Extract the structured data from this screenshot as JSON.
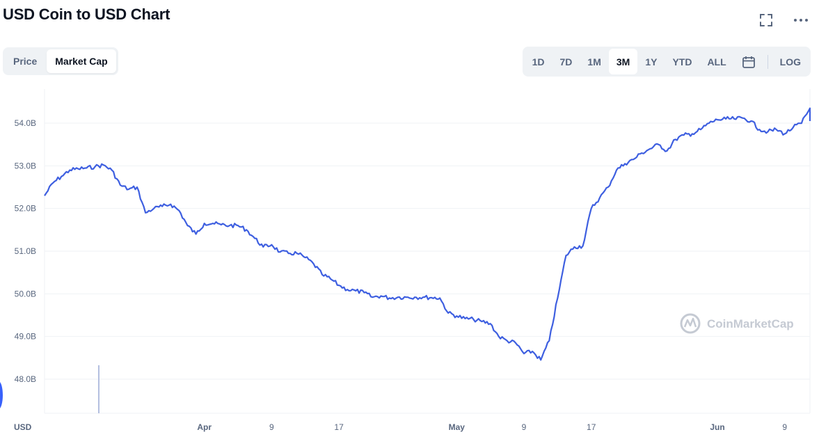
{
  "title": "USD Coin to USD Chart",
  "icons": {
    "fullscreen": "fullscreen-icon",
    "more": "more-icon",
    "calendar": "calendar-icon"
  },
  "view_tabs": [
    {
      "label": "Price",
      "active": false
    },
    {
      "label": "Market Cap",
      "active": true
    }
  ],
  "range_tabs": [
    {
      "label": "1D",
      "active": false
    },
    {
      "label": "7D",
      "active": false
    },
    {
      "label": "1M",
      "active": false
    },
    {
      "label": "3M",
      "active": true
    },
    {
      "label": "1Y",
      "active": false
    },
    {
      "label": "YTD",
      "active": false
    },
    {
      "label": "ALL",
      "active": false
    }
  ],
  "log_label": "LOG",
  "currency_label": "USD",
  "watermark": "CoinMarketCap",
  "colors": {
    "line": "#3e5fe0",
    "grid": "#eff2f5",
    "axis_text": "#58667e",
    "accent": "#3861fb",
    "volume_bar": "#b4bfe0"
  },
  "chart_data": {
    "type": "line",
    "title": "",
    "xlabel": "",
    "ylabel": "",
    "ylim": [
      47.2,
      54.8
    ],
    "xlim": [
      "2022-03-13",
      "2022-06-12"
    ],
    "y_ticks": [
      "48.0B",
      "49.0B",
      "50.0B",
      "51.0B",
      "52.0B",
      "53.0B",
      "54.0B"
    ],
    "x_ticks": [
      "Apr",
      "9",
      "17",
      "May",
      "9",
      "17",
      "Jun",
      "9"
    ],
    "x_tick_dates": [
      "2022-04-01",
      "2022-04-09",
      "2022-04-17",
      "2022-05-01",
      "2022-05-09",
      "2022-05-17",
      "2022-06-01",
      "2022-06-09"
    ],
    "grid": true,
    "legend": "none",
    "series": [
      {
        "unit": "USD billions",
        "points": [
          [
            "2022-03-13",
            52.3
          ],
          [
            "2022-03-14",
            52.6
          ],
          [
            "2022-03-15",
            52.75
          ],
          [
            "2022-03-16",
            52.9
          ],
          [
            "2022-03-17",
            52.93
          ],
          [
            "2022-03-18",
            52.95
          ],
          [
            "2022-03-19",
            52.98
          ],
          [
            "2022-03-20",
            53.02
          ],
          [
            "2022-03-21",
            52.9
          ],
          [
            "2022-03-22",
            52.55
          ],
          [
            "2022-03-23",
            52.45
          ],
          [
            "2022-03-24",
            52.5
          ],
          [
            "2022-03-25",
            51.9
          ],
          [
            "2022-03-26",
            52.0
          ],
          [
            "2022-03-27",
            52.05
          ],
          [
            "2022-03-28",
            52.1
          ],
          [
            "2022-03-29",
            51.95
          ],
          [
            "2022-03-30",
            51.6
          ],
          [
            "2022-03-31",
            51.4
          ],
          [
            "2022-04-01",
            51.65
          ],
          [
            "2022-04-02",
            51.65
          ],
          [
            "2022-04-03",
            51.62
          ],
          [
            "2022-04-04",
            51.6
          ],
          [
            "2022-04-05",
            51.6
          ],
          [
            "2022-04-06",
            51.5
          ],
          [
            "2022-04-07",
            51.3
          ],
          [
            "2022-04-08",
            51.1
          ],
          [
            "2022-04-09",
            51.15
          ],
          [
            "2022-04-10",
            50.98
          ],
          [
            "2022-04-11",
            50.95
          ],
          [
            "2022-04-12",
            50.95
          ],
          [
            "2022-04-13",
            50.85
          ],
          [
            "2022-04-14",
            50.7
          ],
          [
            "2022-04-15",
            50.45
          ],
          [
            "2022-04-16",
            50.35
          ],
          [
            "2022-04-17",
            50.2
          ],
          [
            "2022-04-18",
            50.1
          ],
          [
            "2022-04-19",
            50.07
          ],
          [
            "2022-04-20",
            50.03
          ],
          [
            "2022-04-21",
            49.92
          ],
          [
            "2022-04-22",
            49.95
          ],
          [
            "2022-04-23",
            49.9
          ],
          [
            "2022-04-24",
            49.92
          ],
          [
            "2022-04-25",
            49.92
          ],
          [
            "2022-04-26",
            49.92
          ],
          [
            "2022-04-27",
            49.92
          ],
          [
            "2022-04-28",
            49.91
          ],
          [
            "2022-04-29",
            49.9
          ],
          [
            "2022-04-30",
            49.55
          ],
          [
            "2022-05-01",
            49.48
          ],
          [
            "2022-05-02",
            49.42
          ],
          [
            "2022-05-03",
            49.4
          ],
          [
            "2022-05-04",
            49.35
          ],
          [
            "2022-05-05",
            49.3
          ],
          [
            "2022-05-06",
            49.0
          ],
          [
            "2022-05-07",
            48.9
          ],
          [
            "2022-05-08",
            48.85
          ],
          [
            "2022-05-09",
            48.6
          ],
          [
            "2022-05-10",
            48.65
          ],
          [
            "2022-05-11",
            48.45
          ],
          [
            "2022-05-12",
            48.9
          ],
          [
            "2022-05-13",
            49.9
          ],
          [
            "2022-05-14",
            50.9
          ],
          [
            "2022-05-15",
            51.1
          ],
          [
            "2022-05-16",
            51.12
          ],
          [
            "2022-05-17",
            52.0
          ],
          [
            "2022-05-18",
            52.25
          ],
          [
            "2022-05-19",
            52.5
          ],
          [
            "2022-05-20",
            52.9
          ],
          [
            "2022-05-21",
            53.05
          ],
          [
            "2022-05-22",
            53.15
          ],
          [
            "2022-05-23",
            53.3
          ],
          [
            "2022-05-24",
            53.4
          ],
          [
            "2022-05-25",
            53.5
          ],
          [
            "2022-05-26",
            53.35
          ],
          [
            "2022-05-27",
            53.62
          ],
          [
            "2022-05-28",
            53.72
          ],
          [
            "2022-05-29",
            53.75
          ],
          [
            "2022-05-30",
            53.85
          ],
          [
            "2022-05-31",
            54.0
          ],
          [
            "2022-06-01",
            54.08
          ],
          [
            "2022-06-02",
            54.1
          ],
          [
            "2022-06-03",
            54.1
          ],
          [
            "2022-06-04",
            54.12
          ],
          [
            "2022-06-05",
            54.05
          ],
          [
            "2022-06-06",
            53.85
          ],
          [
            "2022-06-07",
            53.8
          ],
          [
            "2022-06-08",
            53.85
          ],
          [
            "2022-06-09",
            53.75
          ],
          [
            "2022-06-10",
            53.9
          ],
          [
            "2022-06-11",
            54.0
          ],
          [
            "2022-06-12",
            54.35
          ],
          [
            "2022-06-12",
            54.05
          ]
        ]
      }
    ]
  }
}
